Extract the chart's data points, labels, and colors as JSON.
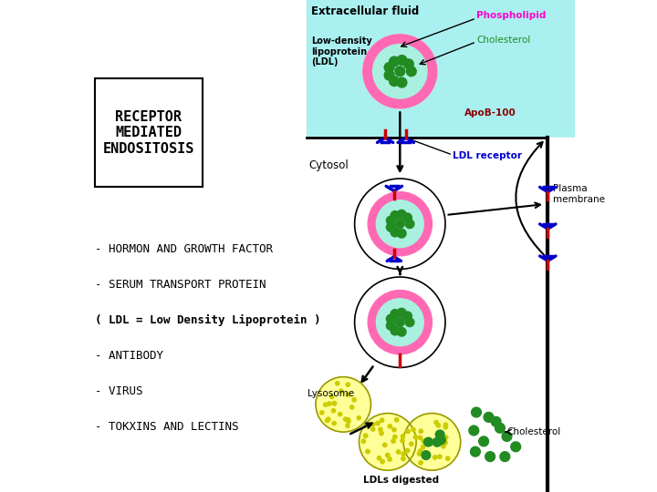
{
  "bg_color": "#ffffff",
  "cyan_bg": "#aaf0f0",
  "title_box_text": "RECEPTOR\nMEDIATED\nENDOSITOSIS",
  "list_lines": [
    "- HORMON AND GROWTH FACTOR",
    "- SERUM TRANSPORT PROTEIN",
    "( LDL = Low Density Lipoprotein )",
    "- ANTIBODY",
    "- VIRUS",
    "- TOKXINS AND LECTINS"
  ],
  "list_bold": [
    false,
    false,
    true,
    false,
    false,
    false
  ],
  "extracellular_label": "Extracellular fluid",
  "cytosol_label": "Cytosol",
  "plasma_membrane_label": "Plasma\nmembrane",
  "lysosome_label": "Lysosome",
  "ldls_digested_label": "LDLs digested",
  "cholesterol_label2": "Cholesterol",
  "phospholipid_label": "Phospholipid",
  "cholesterol_label": "Cholesterol",
  "apob_label": "ApoB-100",
  "ldl_receptor_label": "LDL receptor",
  "ldl_label": "Low-density\nlipoprotein\n(LDL)",
  "pink": "#ff69b4",
  "teal": "#aaf0e0",
  "green_dot": "#228B22",
  "blue_receptor": "#0000cd",
  "red_stem": "#cc0000",
  "yellow": "#ffff99",
  "yellow_dot": "#cccc00"
}
